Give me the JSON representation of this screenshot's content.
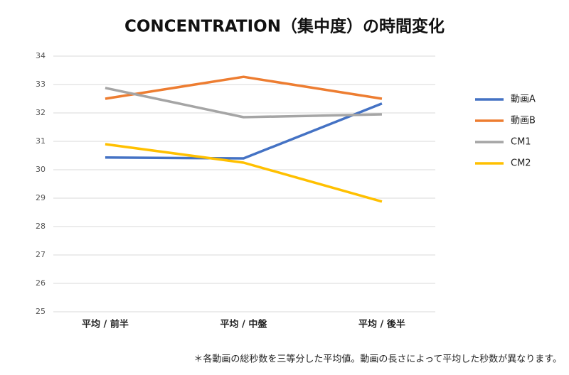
{
  "chart_data": {
    "type": "line",
    "title": "CONCENTRATION（集中度）の時間変化",
    "categories": [
      "平均 / 前半",
      "平均 / 中盤",
      "平均 / 後半"
    ],
    "series": [
      {
        "name": "動画A",
        "color": "#4472c4",
        "values": [
          30.43,
          30.4,
          32.33
        ]
      },
      {
        "name": "動画B",
        "color": "#ed7d31",
        "values": [
          32.5,
          33.27,
          32.5
        ]
      },
      {
        "name": "CM1",
        "color": "#a5a5a5",
        "values": [
          32.88,
          31.85,
          31.95
        ]
      },
      {
        "name": "CM2",
        "color": "#ffc000",
        "values": [
          30.9,
          30.25,
          28.88
        ]
      }
    ],
    "ylim": [
      25,
      34
    ],
    "yticks": [
      25,
      26,
      27,
      28,
      29,
      30,
      31,
      32,
      33,
      34
    ],
    "grid": true,
    "legend": "right",
    "annotation": "＊各動画の総秒数を三等分した平均値。動画の長さによって平均した秒数が異なります。"
  }
}
